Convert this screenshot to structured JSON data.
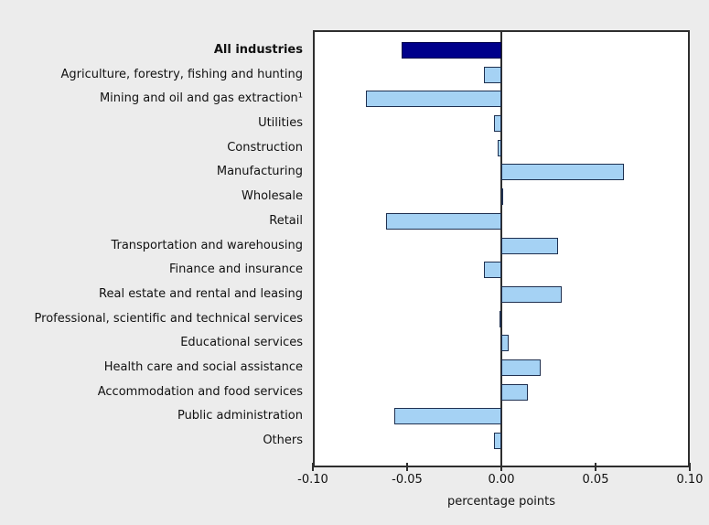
{
  "colors": {
    "background": "#ECECEC",
    "plot_background": "#FFFFFF",
    "frame": "#2E2E2E",
    "bar_fill": "#A5D2F4",
    "bar_border": "#1F3050",
    "highlight_fill": "#00008B",
    "highlight_border": "#00004A",
    "text": "#111111"
  },
  "chart_data": {
    "type": "bar",
    "orientation": "horizontal",
    "title": "",
    "xlabel": "percentage points",
    "ylabel": "",
    "xlim": [
      -0.1,
      0.1
    ],
    "grid": false,
    "legend": "none",
    "x_ticks": [
      {
        "value": -0.1,
        "label": "-0.10"
      },
      {
        "value": -0.05,
        "label": "-0.05"
      },
      {
        "value": 0.0,
        "label": "0.00"
      },
      {
        "value": 0.05,
        "label": "0.05"
      },
      {
        "value": 0.1,
        "label": "0.10"
      }
    ],
    "bars": [
      {
        "label": "All industries",
        "value": -0.053,
        "bold": true,
        "highlight": true
      },
      {
        "label": "Agriculture, forestry, fishing and hunting",
        "value": -0.009,
        "bold": false,
        "highlight": false
      },
      {
        "label": "Mining and oil and gas extraction¹",
        "value": -0.072,
        "bold": false,
        "highlight": false
      },
      {
        "label": "Utilities",
        "value": -0.004,
        "bold": false,
        "highlight": false
      },
      {
        "label": "Construction",
        "value": -0.002,
        "bold": false,
        "highlight": false
      },
      {
        "label": "Manufacturing",
        "value": 0.065,
        "bold": false,
        "highlight": false
      },
      {
        "label": "Wholesale",
        "value": 0.001,
        "bold": false,
        "highlight": false
      },
      {
        "label": "Retail",
        "value": -0.061,
        "bold": false,
        "highlight": false
      },
      {
        "label": "Transportation and warehousing",
        "value": 0.03,
        "bold": false,
        "highlight": false
      },
      {
        "label": "Finance and insurance",
        "value": -0.009,
        "bold": false,
        "highlight": false
      },
      {
        "label": "Real estate and rental and leasing",
        "value": 0.032,
        "bold": false,
        "highlight": false
      },
      {
        "label": "Professional, scientific and technical services",
        "value": -0.001,
        "bold": false,
        "highlight": false
      },
      {
        "label": "Educational services",
        "value": 0.004,
        "bold": false,
        "highlight": false
      },
      {
        "label": "Health care and social assistance",
        "value": 0.021,
        "bold": false,
        "highlight": false
      },
      {
        "label": "Accommodation and food services",
        "value": 0.014,
        "bold": false,
        "highlight": false
      },
      {
        "label": "Public administration",
        "value": -0.057,
        "bold": false,
        "highlight": false
      },
      {
        "label": "Others",
        "value": -0.004,
        "bold": false,
        "highlight": false
      }
    ]
  }
}
